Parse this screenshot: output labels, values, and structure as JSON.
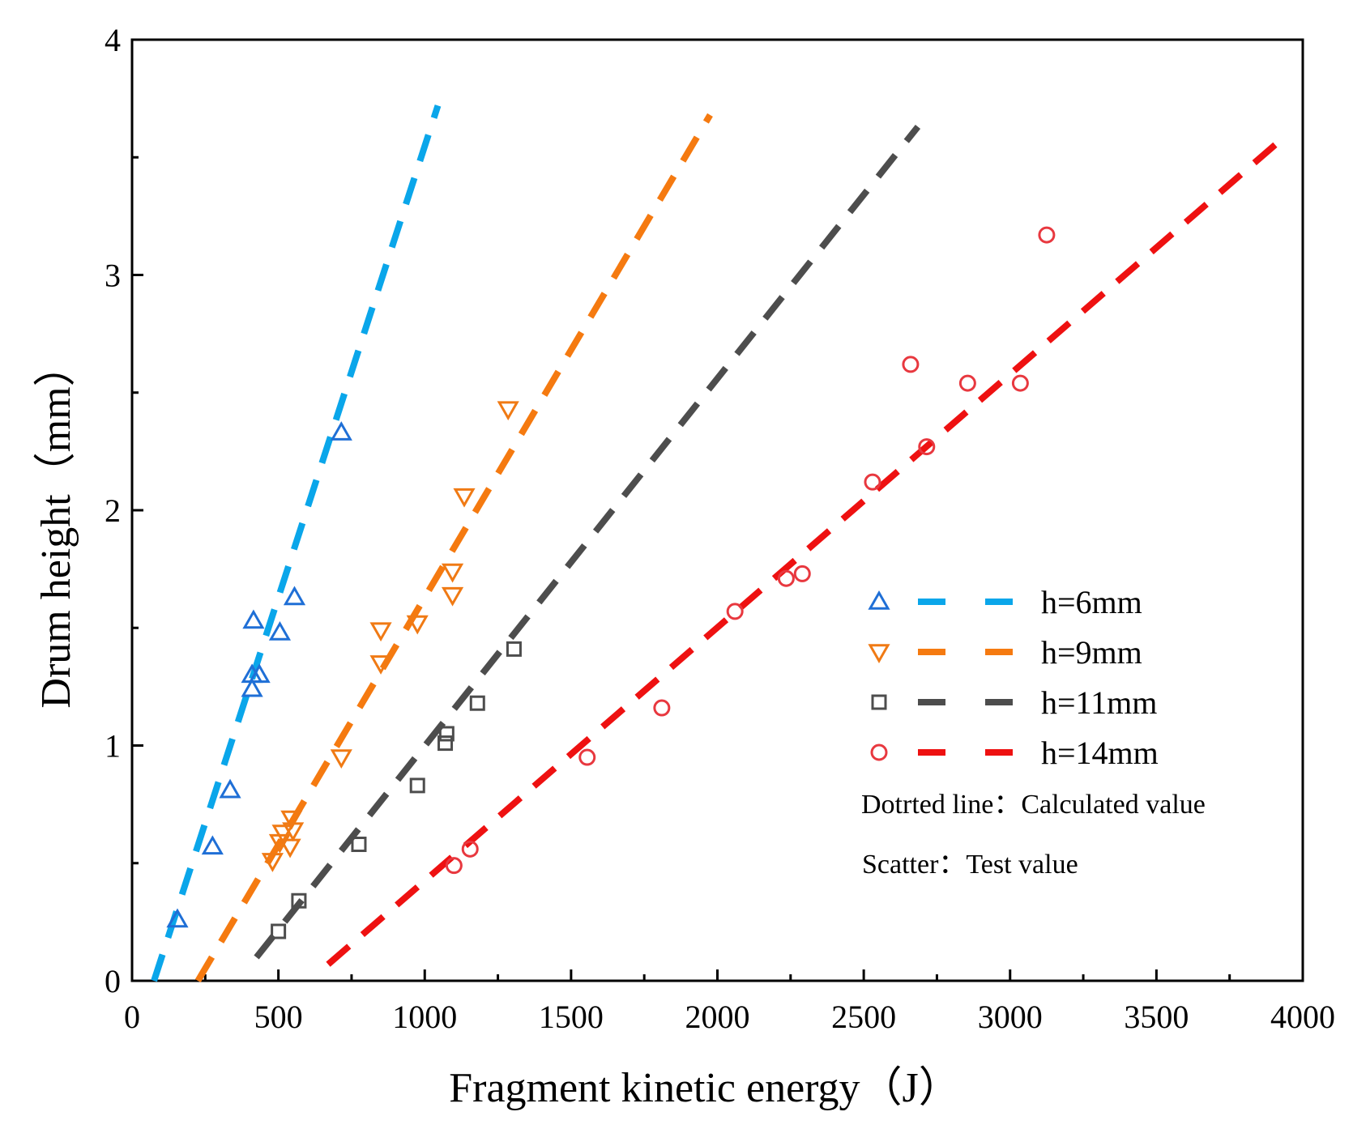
{
  "chart_data": {
    "type": "scatter",
    "xlabel": "Fragment kinetic energy（J）",
    "ylabel": "Drum height（mm）",
    "xlim": [
      0,
      4000
    ],
    "ylim": [
      0,
      4
    ],
    "x_ticks": [
      0,
      500,
      1000,
      1500,
      2000,
      2500,
      3000,
      3500,
      4000
    ],
    "y_ticks": [
      0,
      1,
      2,
      3,
      4
    ],
    "x_tick_labels": [
      "0",
      "500",
      "1000",
      "1500",
      "2000",
      "2500",
      "3000",
      "3500",
      "4000"
    ],
    "y_tick_labels": [
      "0",
      "1",
      "2",
      "3",
      "4"
    ],
    "grid": false,
    "legend_position": "right",
    "series": [
      {
        "name": "h=6mm",
        "marker": "triangle-up",
        "marker_color": "#1f6fd6",
        "line_color": "#0aa6ea",
        "line": [
          [
            75,
            0
          ],
          [
            1045,
            3.72
          ]
        ],
        "points": [
          [
            155,
            0.26
          ],
          [
            275,
            0.57
          ],
          [
            335,
            0.81
          ],
          [
            410,
            1.24
          ],
          [
            410,
            1.3
          ],
          [
            415,
            1.53
          ],
          [
            435,
            1.3
          ],
          [
            505,
            1.48
          ],
          [
            555,
            1.63
          ],
          [
            715,
            2.33
          ]
        ]
      },
      {
        "name": "h=9mm",
        "marker": "triangle-down",
        "marker_color": "#f07a14",
        "line_color": "#f57a10",
        "line": [
          [
            225,
            0
          ],
          [
            1975,
            3.68
          ]
        ],
        "points": [
          [
            480,
            0.51
          ],
          [
            505,
            0.59
          ],
          [
            515,
            0.63
          ],
          [
            540,
            0.57
          ],
          [
            545,
            0.69
          ],
          [
            550,
            0.64
          ],
          [
            715,
            0.95
          ],
          [
            850,
            1.35
          ],
          [
            850,
            1.49
          ],
          [
            975,
            1.52
          ],
          [
            1095,
            1.64
          ],
          [
            1095,
            1.74
          ],
          [
            1135,
            2.06
          ],
          [
            1285,
            2.43
          ]
        ]
      },
      {
        "name": "h=11mm",
        "marker": "square",
        "marker_color": "#4d4d4d",
        "line_color": "#4d4d4d",
        "line": [
          [
            425,
            0.1
          ],
          [
            2685,
            3.63
          ]
        ],
        "points": [
          [
            500,
            0.21
          ],
          [
            570,
            0.34
          ],
          [
            775,
            0.58
          ],
          [
            975,
            0.83
          ],
          [
            1070,
            1.01
          ],
          [
            1075,
            1.05
          ],
          [
            1180,
            1.18
          ],
          [
            1305,
            1.41
          ]
        ]
      },
      {
        "name": "h=14mm",
        "marker": "circle",
        "marker_color": "#e8383f",
        "line_color": "#ee1111",
        "line": [
          [
            670,
            0.07
          ],
          [
            3940,
            3.59
          ]
        ],
        "points": [
          [
            1100,
            0.49
          ],
          [
            1155,
            0.56
          ],
          [
            1555,
            0.95
          ],
          [
            1810,
            1.16
          ],
          [
            2060,
            1.57
          ],
          [
            2235,
            1.71
          ],
          [
            2290,
            1.73
          ],
          [
            2530,
            2.12
          ],
          [
            2660,
            2.62
          ],
          [
            2715,
            2.27
          ],
          [
            2855,
            2.54
          ],
          [
            3035,
            2.54
          ],
          [
            3125,
            3.17
          ]
        ]
      }
    ]
  },
  "notes": {
    "line_note": "Dotrted line：Calculated value",
    "scatter_note": "Scatter：Test value"
  }
}
